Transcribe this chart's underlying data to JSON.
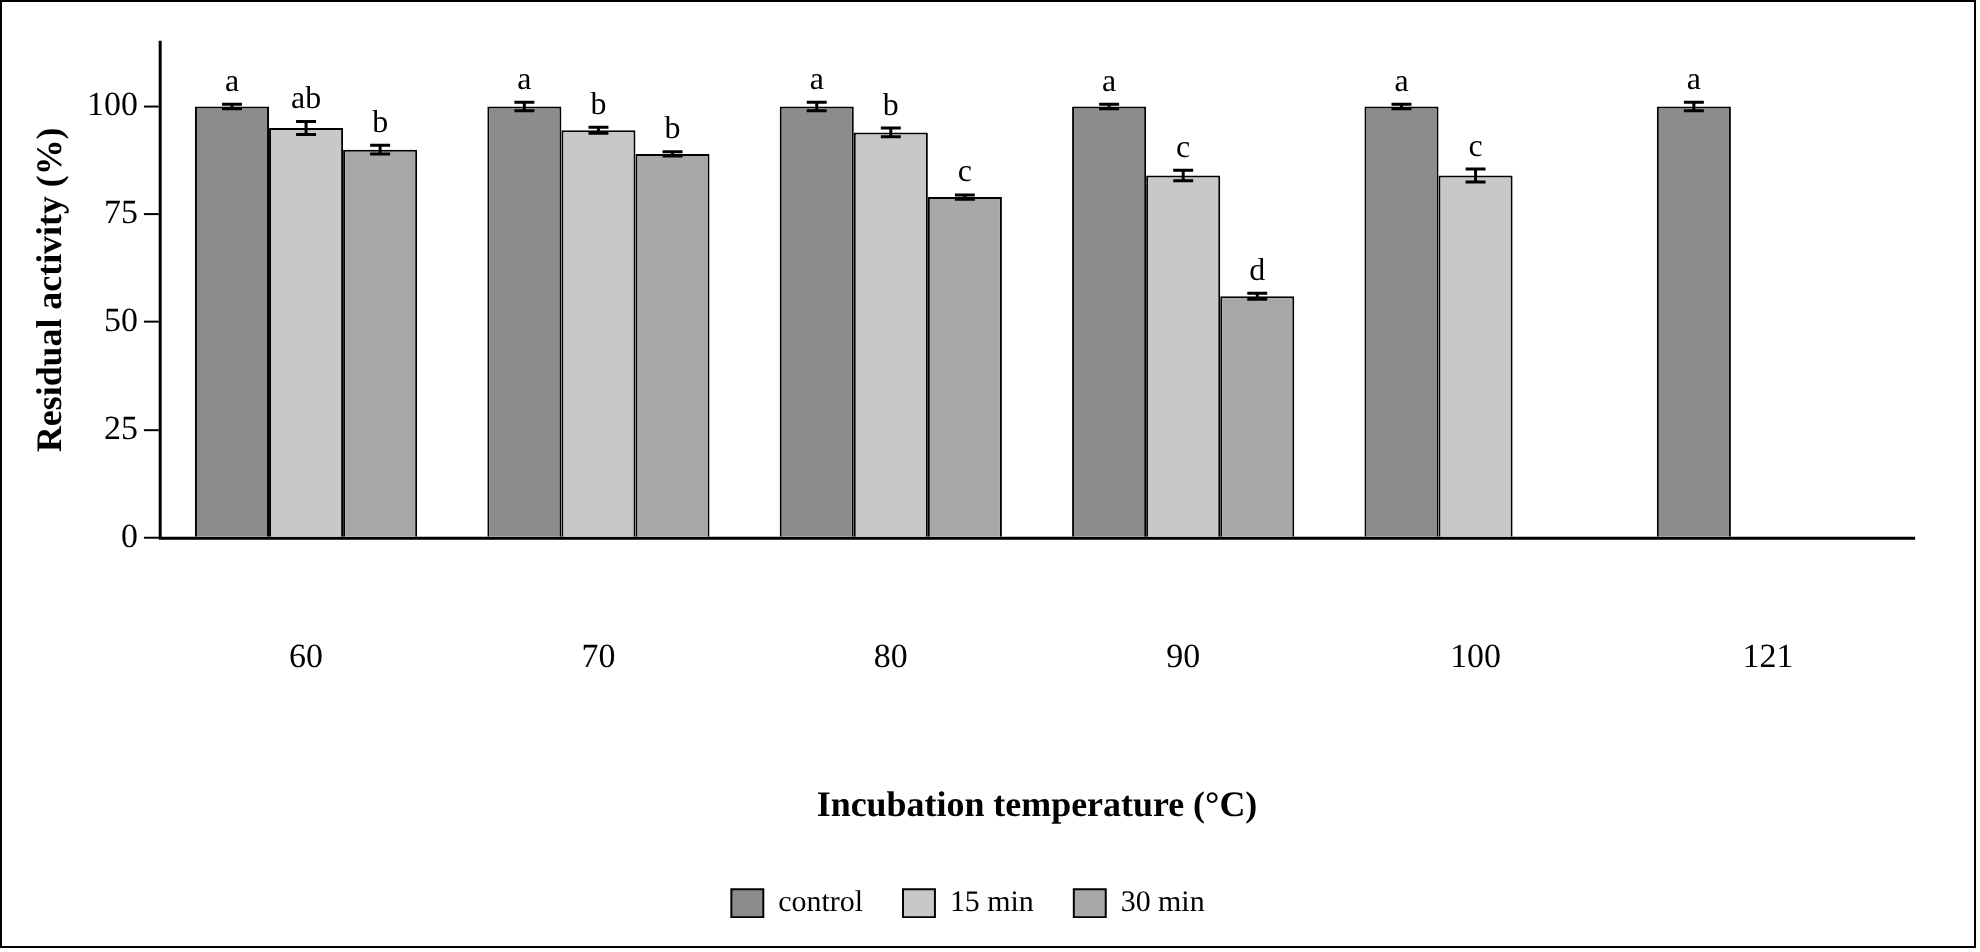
{
  "chart_data": {
    "type": "bar",
    "xlabel": "Incubation temperature (°C)",
    "ylabel": "Residual activity (%)",
    "categories": [
      "60",
      "70",
      "80",
      "90",
      "100",
      "121"
    ],
    "series": [
      {
        "name": "control",
        "color": "#8c8c8c",
        "values": [
          100,
          100,
          100,
          100,
          100,
          100
        ],
        "errors": [
          0.5,
          1,
          1,
          0.5,
          0.5,
          1
        ],
        "value_labels": [
          "a",
          "a",
          "a",
          "a",
          "a",
          "a"
        ]
      },
      {
        "name": "15 min",
        "color": "#c8c8c8",
        "values": [
          95,
          94.5,
          94,
          84,
          84,
          null
        ],
        "errors": [
          1.5,
          0.7,
          1,
          1.2,
          1.5,
          null
        ],
        "value_labels": [
          "ab",
          "b",
          "b",
          "c",
          "c",
          null
        ]
      },
      {
        "name": "30 min",
        "color": "#a8a8a8",
        "values": [
          90,
          89,
          79,
          56,
          null,
          null
        ],
        "errors": [
          1,
          0.5,
          0.5,
          0.7,
          null,
          null
        ],
        "value_labels": [
          "b",
          "b",
          "c",
          "d",
          null,
          null
        ]
      }
    ],
    "ylim": [
      0,
      115
    ],
    "yticks": [
      0,
      25,
      50,
      75,
      100
    ],
    "grid": false,
    "legend": "bottom"
  }
}
